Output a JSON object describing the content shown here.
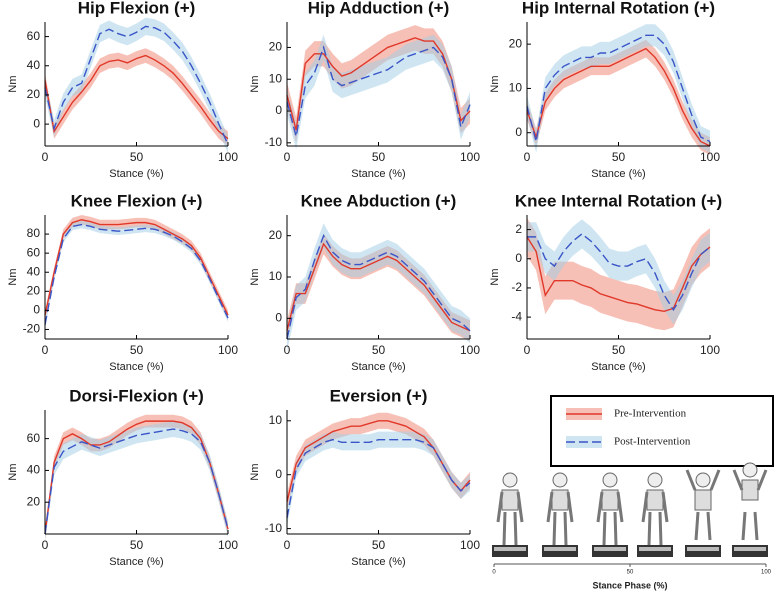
{
  "legend": [
    {
      "name": "Pre-Intervention",
      "color": "#e0382a",
      "band": "rgba(240,130,110,0.5)",
      "dash": "none"
    },
    {
      "name": "Post-Intervention",
      "color": "#3a55c8",
      "band": "rgba(160,205,230,0.5)",
      "dash": "9,4"
    }
  ],
  "illustration": {
    "xlabel": "Stance Phase (%)",
    "xticks": [
      0,
      50,
      100
    ]
  },
  "chart_data": [
    {
      "type": "line",
      "title": "Hip Flexion (+)",
      "xlabel": "Stance (%)",
      "ylabel": "Nm",
      "x": [
        0,
        5,
        10,
        15,
        20,
        25,
        30,
        35,
        40,
        45,
        50,
        55,
        60,
        65,
        70,
        75,
        80,
        85,
        90,
        95,
        100
      ],
      "xlim": [
        0,
        100
      ],
      "xticks": [
        0,
        50,
        100
      ],
      "ylim": [
        -15,
        70
      ],
      "yticks": [
        0,
        20,
        40,
        60
      ],
      "series": [
        {
          "values": [
            30,
            -5,
            5,
            15,
            22,
            30,
            40,
            43,
            44,
            42,
            45,
            47,
            44,
            40,
            35,
            28,
            20,
            12,
            3,
            -5,
            -10
          ],
          "spread": 5
        },
        {
          "values": [
            25,
            -3,
            15,
            25,
            28,
            45,
            62,
            65,
            62,
            60,
            63,
            67,
            66,
            63,
            57,
            50,
            40,
            28,
            15,
            0,
            -14
          ],
          "spread": 6
        }
      ]
    },
    {
      "type": "line",
      "title": "Hip Adduction (+)",
      "xlabel": "Stance (%)",
      "ylabel": "Nm",
      "x": [
        0,
        5,
        10,
        15,
        20,
        25,
        30,
        35,
        40,
        45,
        50,
        55,
        60,
        65,
        70,
        75,
        80,
        85,
        90,
        95,
        100
      ],
      "xlim": [
        0,
        100
      ],
      "xticks": [
        0,
        50,
        100
      ],
      "ylim": [
        -11,
        28
      ],
      "yticks": [
        -10,
        0,
        10,
        20
      ],
      "series": [
        {
          "values": [
            5,
            -6,
            15,
            18,
            18,
            14,
            11,
            12,
            14,
            16,
            18,
            20,
            21,
            22,
            23,
            22,
            22,
            18,
            10,
            -3,
            0
          ],
          "spread": 4
        },
        {
          "values": [
            3,
            -8,
            8,
            12,
            20,
            10,
            8,
            9,
            10,
            11,
            12,
            13,
            15,
            17,
            18,
            19,
            20,
            17,
            10,
            -5,
            2
          ],
          "spread": 4
        }
      ]
    },
    {
      "type": "line",
      "title": "Hip Internal Rotation (+)",
      "xlabel": "Stance (%)",
      "ylabel": "Nm",
      "x": [
        0,
        5,
        10,
        15,
        20,
        25,
        30,
        35,
        40,
        45,
        50,
        55,
        60,
        65,
        70,
        75,
        80,
        85,
        90,
        95,
        100
      ],
      "xlim": [
        0,
        100
      ],
      "xticks": [
        0,
        50,
        100
      ],
      "ylim": [
        -3,
        25
      ],
      "yticks": [
        0,
        10,
        20
      ],
      "series": [
        {
          "values": [
            5,
            -1,
            7,
            10,
            12,
            13,
            14,
            15,
            15,
            15,
            16,
            17,
            18,
            19,
            17,
            14,
            10,
            5,
            1,
            -2,
            -3
          ],
          "spread": 2
        },
        {
          "values": [
            6,
            -2,
            10,
            13,
            15,
            16,
            17,
            17,
            18,
            18,
            19,
            20,
            21,
            22,
            22,
            20,
            16,
            10,
            4,
            -1,
            -2
          ],
          "spread": 2.5
        }
      ]
    },
    {
      "type": "line",
      "title": "Knee Flexion (+)",
      "xlabel": "Stance (%)",
      "ylabel": "Nm",
      "x": [
        0,
        5,
        10,
        15,
        20,
        25,
        30,
        35,
        40,
        45,
        50,
        55,
        60,
        65,
        70,
        75,
        80,
        85,
        90,
        95,
        100
      ],
      "xlim": [
        0,
        100
      ],
      "xticks": [
        0,
        50,
        100
      ],
      "ylim": [
        -30,
        100
      ],
      "yticks": [
        -20,
        0,
        20,
        40,
        60,
        80
      ],
      "series": [
        {
          "values": [
            -5,
            40,
            80,
            92,
            95,
            93,
            90,
            90,
            90,
            91,
            92,
            92,
            90,
            85,
            80,
            75,
            68,
            55,
            35,
            15,
            -5
          ],
          "spread": 5
        },
        {
          "values": [
            -15,
            35,
            75,
            88,
            90,
            88,
            85,
            84,
            83,
            84,
            85,
            86,
            85,
            82,
            78,
            72,
            65,
            52,
            33,
            12,
            -8
          ],
          "spread": 4
        }
      ]
    },
    {
      "type": "line",
      "title": "Knee Abduction (+)",
      "xlabel": "Stance (%)",
      "ylabel": "Nm",
      "x": [
        0,
        5,
        10,
        15,
        20,
        25,
        30,
        35,
        40,
        45,
        50,
        55,
        60,
        65,
        70,
        75,
        80,
        85,
        90,
        95,
        100
      ],
      "xlim": [
        0,
        100
      ],
      "xticks": [
        0,
        50,
        100
      ],
      "ylim": [
        -5,
        25
      ],
      "yticks": [
        0,
        10,
        20
      ],
      "series": [
        {
          "values": [
            -3,
            6,
            6,
            12,
            18,
            15,
            13,
            12,
            12,
            13,
            14,
            15,
            14,
            12,
            10,
            8,
            5,
            2,
            -1,
            -2,
            -3
          ],
          "spread": 2.5
        },
        {
          "values": [
            -5,
            5,
            7,
            14,
            20,
            16,
            14,
            13,
            13,
            14,
            15,
            16,
            15,
            13,
            11,
            9,
            6,
            3,
            0,
            -1,
            -3
          ],
          "spread": 3
        }
      ]
    },
    {
      "type": "line",
      "title": "Knee Internal Rotation (+)",
      "xlabel": "Stance (%)",
      "ylabel": "Nm",
      "x": [
        0,
        5,
        10,
        15,
        20,
        25,
        30,
        35,
        40,
        45,
        50,
        55,
        60,
        65,
        70,
        75,
        80,
        85,
        90,
        95,
        100
      ],
      "xlim": [
        0,
        100
      ],
      "xticks": [
        0,
        50,
        100
      ],
      "ylim": [
        -5.5,
        3
      ],
      "yticks": [
        -4,
        -2,
        0,
        2
      ],
      "series": [
        {
          "values": [
            1.5,
            0.5,
            -2.5,
            -1.5,
            -1.5,
            -1.5,
            -1.8,
            -2,
            -2.4,
            -2.6,
            -2.8,
            -3,
            -3.1,
            -3.3,
            -3.5,
            -3.6,
            -3.4,
            -2,
            -0.5,
            0.3,
            0.8
          ],
          "spread": 1.3
        },
        {
          "values": [
            1.5,
            1.5,
            0,
            -0.5,
            0.5,
            1.2,
            1.7,
            1.2,
            0.5,
            -0.3,
            -0.5,
            -0.5,
            -0.2,
            0,
            -1,
            -2.5,
            -3.5,
            -2.5,
            -1,
            0.3,
            0.8
          ],
          "spread": 1
        }
      ]
    },
    {
      "type": "line",
      "title": "Dorsi-Flexion (+)",
      "xlabel": "Stance (%)",
      "ylabel": "Nm",
      "x": [
        0,
        5,
        10,
        15,
        20,
        25,
        30,
        35,
        40,
        45,
        50,
        55,
        60,
        65,
        70,
        75,
        80,
        85,
        90,
        95,
        100
      ],
      "xlim": [
        0,
        100
      ],
      "xticks": [
        0,
        50,
        100
      ],
      "ylim": [
        0,
        78
      ],
      "yticks": [
        20,
        40,
        60
      ],
      "series": [
        {
          "values": [
            0,
            45,
            60,
            63,
            60,
            56,
            56,
            58,
            62,
            66,
            69,
            71,
            71,
            71,
            71,
            70,
            67,
            60,
            45,
            25,
            3
          ],
          "spread": 4
        },
        {
          "values": [
            0,
            42,
            52,
            55,
            58,
            56,
            54,
            56,
            58,
            60,
            62,
            63,
            64,
            65,
            66,
            65,
            63,
            58,
            45,
            25,
            3
          ],
          "spread": 5
        }
      ]
    },
    {
      "type": "line",
      "title": "Eversion (+)",
      "xlabel": "Stance (%)",
      "ylabel": "Nm",
      "x": [
        0,
        5,
        10,
        15,
        20,
        25,
        30,
        35,
        40,
        45,
        50,
        55,
        60,
        65,
        70,
        75,
        80,
        85,
        90,
        95,
        100
      ],
      "xlim": [
        0,
        100
      ],
      "xticks": [
        0,
        50,
        100
      ],
      "ylim": [
        -11,
        12
      ],
      "yticks": [
        -10,
        0,
        10
      ],
      "series": [
        {
          "values": [
            -5,
            2,
            5,
            6,
            7,
            8,
            8.5,
            9,
            9,
            9.5,
            10,
            10,
            9.5,
            9,
            8,
            7,
            5,
            2,
            -1,
            -3,
            -1
          ],
          "spread": 1.5
        },
        {
          "values": [
            -8,
            1,
            4,
            5,
            6,
            6.5,
            6,
            6,
            6,
            6,
            6.5,
            6.5,
            6.5,
            6.5,
            6.5,
            6,
            5,
            2,
            -1,
            -3,
            -1.5
          ],
          "spread": 1.5
        }
      ]
    }
  ]
}
